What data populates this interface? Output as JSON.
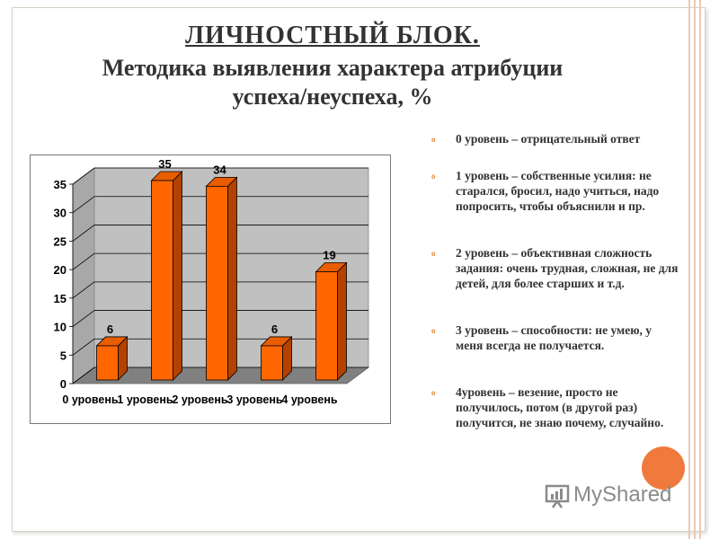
{
  "header": {
    "title": "ЛИЧНОСТНЫЙ БЛОК.",
    "subtitle_line1": "Методика выявления характера атрибуции",
    "subtitle_line2": "успеха/неуспеха, %"
  },
  "chart_data": {
    "type": "bar",
    "categories": [
      "0 уровень",
      "1 уровень",
      "2 уровень",
      "3 уровень",
      "4 уровень"
    ],
    "values": [
      6,
      35,
      34,
      6,
      19
    ],
    "data_labels": [
      "6",
      "35",
      "34",
      "6",
      "19"
    ],
    "yticks": [
      "0",
      "5",
      "10",
      "15",
      "20",
      "25",
      "30",
      "35"
    ],
    "ylim": [
      0,
      35
    ],
    "grid": true,
    "three_d": true,
    "colors": {
      "bar_front": "#ff6600",
      "bar_side": "#b34100",
      "bar_top": "#e85d00",
      "wall": "#c0c0c0",
      "floor": "#808080"
    }
  },
  "legend": {
    "items": [
      "0 уровень – отрицательный ответ",
      "1 уровень – собственные усилия: не старался, бросил, надо учиться, надо попросить, чтобы объяснили и пр.",
      "2 уровень – объективная сложность задания: очень трудная, сложная, не для детей, для более старших и т.д.",
      "3 уровень – способности: не умею, у меня всегда не получается.",
      "4уровень – везение, просто не получилось, потом (в другой раз) получится, не знаю почему, случайно."
    ],
    "bullet_color": "#e58a3a"
  },
  "watermark": {
    "text": "MyShared"
  }
}
